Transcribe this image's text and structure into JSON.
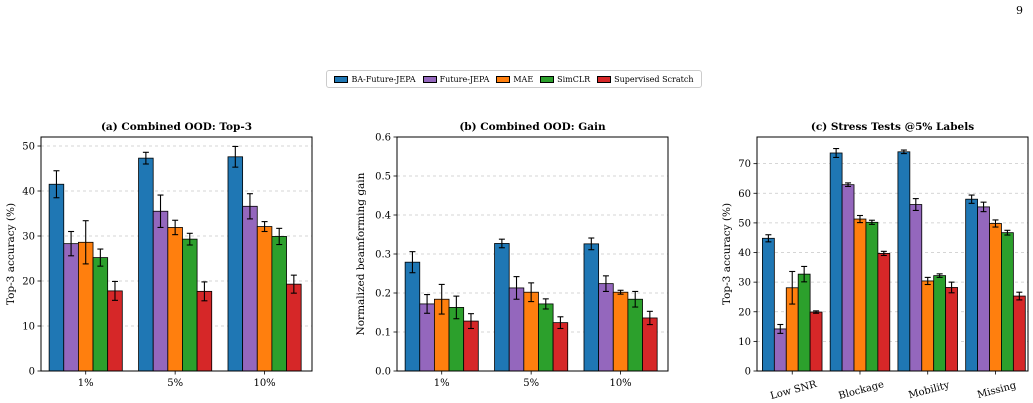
{
  "page_number": "9",
  "colors": {
    "BA-Future-JEPA": "#1f77b4",
    "Future-JEPA": "#9467bd",
    "MAE": "#ff7f0e",
    "SimCLR": "#2ca02c",
    "Supervised Scratch": "#d62728"
  },
  "legend": {
    "placement": "top-center",
    "entries": [
      "BA-Future-JEPA",
      "Future-JEPA",
      "MAE",
      "SimCLR",
      "Supervised Scratch"
    ]
  },
  "chart_data": [
    {
      "type": "bar",
      "title": "(a) Combined OOD: Top-3",
      "xlabel": "",
      "ylabel": "Top-3 accuracy (%)",
      "ylim": [
        0,
        52
      ],
      "yticks": [
        0,
        10,
        20,
        30,
        40,
        50
      ],
      "grid": true,
      "categories": [
        "1%",
        "5%",
        "10%"
      ],
      "series": [
        {
          "name": "BA-Future-JEPA",
          "values": [
            41.5,
            47.3,
            47.6
          ],
          "errors": [
            3.0,
            1.3,
            2.3
          ]
        },
        {
          "name": "Future-JEPA",
          "values": [
            28.3,
            35.5,
            36.6
          ],
          "errors": [
            2.7,
            3.6,
            2.8
          ]
        },
        {
          "name": "MAE",
          "values": [
            28.6,
            31.9,
            32.1
          ],
          "errors": [
            4.8,
            1.6,
            1.1
          ]
        },
        {
          "name": "SimCLR",
          "values": [
            25.2,
            29.3,
            29.9
          ],
          "errors": [
            1.9,
            1.3,
            1.8
          ]
        },
        {
          "name": "Supervised Scratch",
          "values": [
            17.8,
            17.7,
            19.3
          ],
          "errors": [
            2.1,
            2.1,
            2.0
          ]
        }
      ]
    },
    {
      "type": "bar",
      "title": "(b) Combined OOD: Gain",
      "xlabel": "",
      "ylabel": "Normalized beamforming gain",
      "ylim": [
        0,
        0.6
      ],
      "yticks": [
        0.0,
        0.1,
        0.2,
        0.3,
        0.4,
        0.5,
        0.6
      ],
      "grid": true,
      "categories": [
        "1%",
        "5%",
        "10%"
      ],
      "series": [
        {
          "name": "BA-Future-JEPA",
          "values": [
            0.279,
            0.327,
            0.326
          ],
          "errors": [
            0.027,
            0.011,
            0.015
          ]
        },
        {
          "name": "Future-JEPA",
          "values": [
            0.172,
            0.213,
            0.224
          ],
          "errors": [
            0.024,
            0.029,
            0.02
          ]
        },
        {
          "name": "MAE",
          "values": [
            0.184,
            0.202,
            0.202
          ],
          "errors": [
            0.038,
            0.024,
            0.005
          ]
        },
        {
          "name": "SimCLR",
          "values": [
            0.163,
            0.172,
            0.184
          ],
          "errors": [
            0.029,
            0.013,
            0.02
          ]
        },
        {
          "name": "Supervised Scratch",
          "values": [
            0.128,
            0.124,
            0.136
          ],
          "errors": [
            0.019,
            0.015,
            0.017
          ]
        }
      ]
    },
    {
      "type": "bar",
      "title": "(c) Stress Tests @5% Labels",
      "xlabel": "",
      "ylabel": "Top-3 accuracy (%)",
      "ylim": [
        0,
        79
      ],
      "yticks": [
        0,
        10,
        20,
        30,
        40,
        50,
        60,
        70
      ],
      "grid": true,
      "rotate_xticks": true,
      "categories": [
        "Low SNR",
        "Blockage",
        "Mobility",
        "Missing"
      ],
      "series": [
        {
          "name": "BA-Future-JEPA",
          "values": [
            44.8,
            73.6,
            74.0,
            58.0
          ],
          "errors": [
            1.2,
            1.5,
            0.6,
            1.4
          ]
        },
        {
          "name": "Future-JEPA",
          "values": [
            14.2,
            62.9,
            56.2,
            55.4
          ],
          "errors": [
            1.5,
            0.6,
            2.0,
            1.6
          ]
        },
        {
          "name": "MAE",
          "values": [
            28.1,
            51.3,
            30.4,
            49.8
          ],
          "errors": [
            5.5,
            1.2,
            1.2,
            1.2
          ]
        },
        {
          "name": "SimCLR",
          "values": [
            32.7,
            50.2,
            32.2,
            46.7
          ],
          "errors": [
            2.6,
            0.7,
            0.6,
            0.8
          ]
        },
        {
          "name": "Supervised Scratch",
          "values": [
            19.9,
            39.7,
            28.2,
            25.3
          ],
          "errors": [
            0.4,
            0.7,
            1.8,
            1.3
          ]
        }
      ]
    }
  ]
}
